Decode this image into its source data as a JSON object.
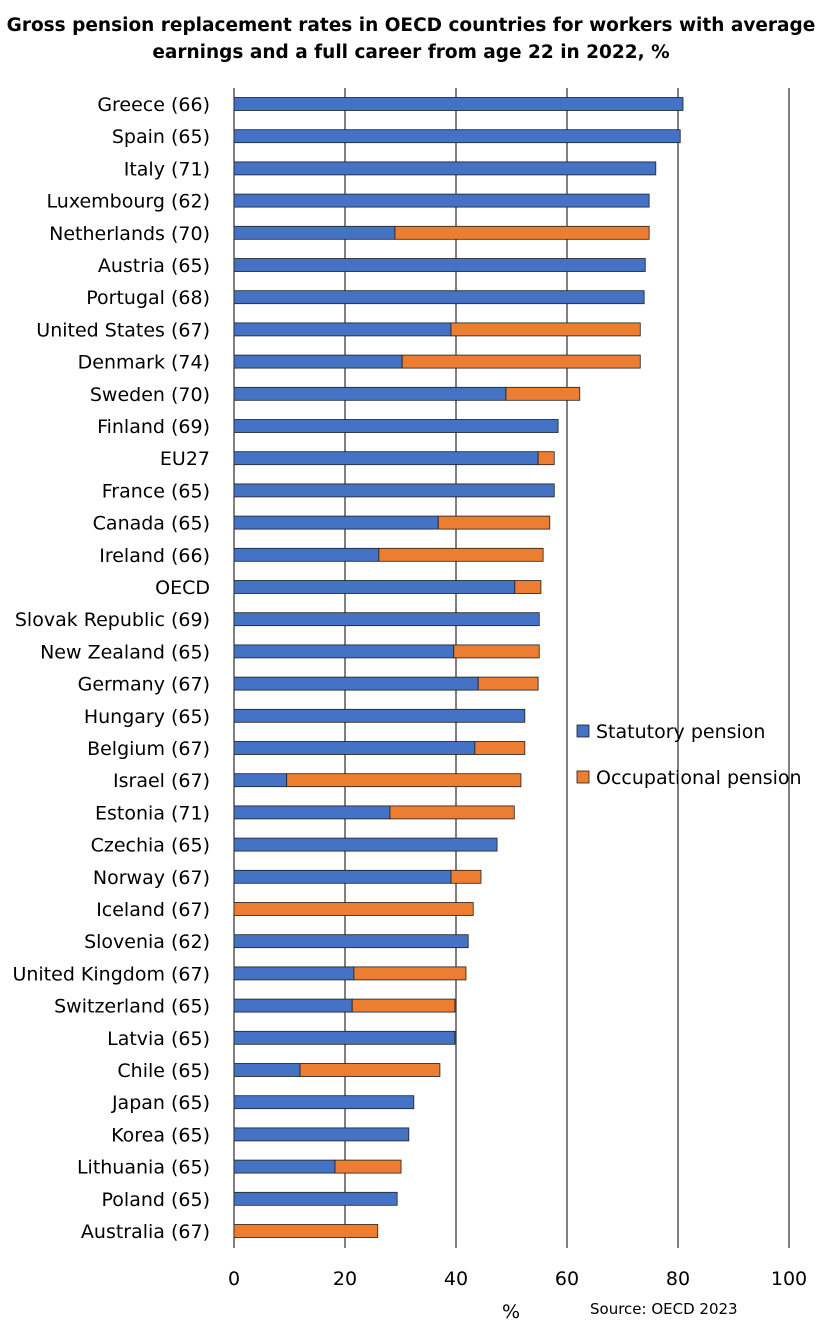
{
  "chart_data": {
    "type": "bar",
    "orientation": "horizontal",
    "stacked": true,
    "title": "Gross pension replacement rates in OECD countries for workers with average earnings and a full career from age 22 in 2022, %",
    "xlabel": "%",
    "source": "Source: OECD 2023",
    "xlim": [
      0,
      100
    ],
    "xticks": [
      0,
      20,
      40,
      60,
      80,
      100
    ],
    "grid": true,
    "legend_position": "right",
    "categories": [
      "Greece (66)",
      "Spain (65)",
      "Italy (71)",
      "Luxembourg (62)",
      "Netherlands (70)",
      "Austria (65)",
      "Portugal (68)",
      "United States (67)",
      "Denmark (74)",
      "Sweden (70)",
      "Finland (69)",
      "EU27",
      "France (65)",
      "Canada (65)",
      "Ireland (66)",
      "OECD",
      "Slovak Republic (69)",
      "New Zealand (65)",
      "Germany (67)",
      "Hungary (65)",
      "Belgium (67)",
      "Israel (67)",
      "Estonia (71)",
      "Czechia (65)",
      "Norway (67)",
      "Iceland (67)",
      "Slovenia (62)",
      "United Kingdom (67)",
      "Switzerland (65)",
      "Latvia (65)",
      "Chile (65)",
      "Japan (65)",
      "Korea (65)",
      "Lithuania (65)",
      "Poland (65)",
      "Australia (67)"
    ],
    "series": [
      {
        "name": "Statutory pension",
        "color": "#4472C4",
        "values": [
          80.9,
          80.4,
          76.0,
          74.8,
          29.0,
          74.1,
          73.9,
          39.1,
          30.3,
          49.0,
          58.4,
          54.8,
          57.7,
          36.8,
          26.1,
          50.6,
          55.0,
          39.6,
          44.0,
          52.4,
          43.4,
          9.5,
          28.1,
          47.4,
          39.1,
          0,
          42.2,
          21.6,
          21.3,
          39.8,
          11.9,
          32.4,
          31.5,
          18.2,
          29.4,
          0
        ]
      },
      {
        "name": "Occupational pension",
        "color": "#ED7D31",
        "values": [
          0,
          0,
          0,
          0,
          45.8,
          0,
          0,
          34.1,
          42.9,
          13.3,
          0,
          2.9,
          0,
          20.1,
          29.6,
          4.7,
          0,
          15.4,
          10.8,
          0,
          9.0,
          42.2,
          22.4,
          0,
          5.4,
          43.1,
          0,
          20.2,
          18.5,
          0,
          25.2,
          0,
          0,
          11.9,
          0,
          25.9
        ]
      }
    ]
  }
}
